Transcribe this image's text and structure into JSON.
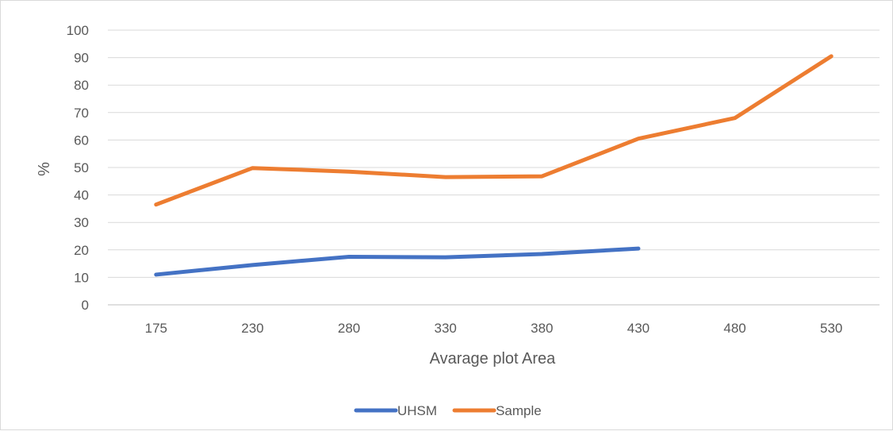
{
  "chart_data": {
    "type": "line",
    "title": "",
    "xlabel": "Avarage plot Area",
    "ylabel": "%",
    "categories": [
      "175",
      "230",
      "280",
      "330",
      "380",
      "430",
      "480",
      "530"
    ],
    "ylim": [
      0,
      100
    ],
    "yticks": [
      "0",
      "10",
      "20",
      "30",
      "40",
      "50",
      "60",
      "70",
      "80",
      "90",
      "100"
    ],
    "grid": true,
    "legend_position": "bottom",
    "series": [
      {
        "name": "UHSM",
        "color": "#4472C4",
        "values": [
          11,
          14.5,
          17.5,
          17.3,
          18.5,
          20.5,
          null,
          null
        ]
      },
      {
        "name": "Sample",
        "color": "#ED7D31",
        "values": [
          36.5,
          49.8,
          48.5,
          46.5,
          46.8,
          60.5,
          68,
          90.5
        ]
      }
    ]
  }
}
